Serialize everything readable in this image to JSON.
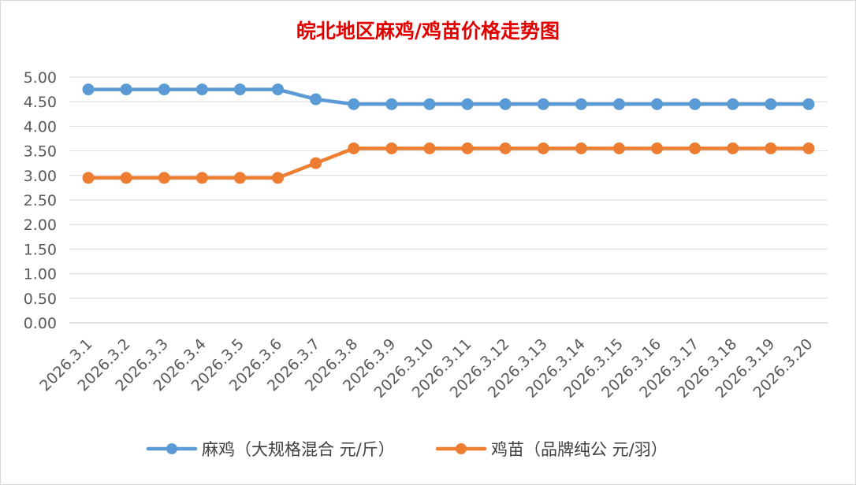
{
  "chart_data": {
    "type": "line",
    "title": "皖北地区麻鸡/鸡苗价格走势图",
    "xlabel": "",
    "ylabel": "",
    "ylim": [
      0,
      5
    ],
    "yticks": [
      "0.00",
      "0.50",
      "1.00",
      "1.50",
      "2.00",
      "2.50",
      "3.00",
      "3.50",
      "4.00",
      "4.50",
      "5.00"
    ],
    "categories": [
      "2026.3.1",
      "2026.3.2",
      "2026.3.3",
      "2026.3.4",
      "2026.3.5",
      "2026.3.6",
      "2026.3.7",
      "2026.3.8",
      "2026.3.9",
      "2026.3.10",
      "2026.3.11",
      "2026.3.12",
      "2026.3.13",
      "2026.3.14",
      "2026.3.15",
      "2026.3.16",
      "2026.3.17",
      "2026.3.18",
      "2026.3.19",
      "2026.3.20"
    ],
    "series": [
      {
        "name": "麻鸡（大规格混合 元/斤）",
        "color": "#5b9bd5",
        "values": [
          4.75,
          4.75,
          4.75,
          4.75,
          4.75,
          4.75,
          4.55,
          4.45,
          4.45,
          4.45,
          4.45,
          4.45,
          4.45,
          4.45,
          4.45,
          4.45,
          4.45,
          4.45,
          4.45,
          4.45
        ]
      },
      {
        "name": "鸡苗（品牌纯公 元/羽）",
        "color": "#ed7d31",
        "values": [
          2.95,
          2.95,
          2.95,
          2.95,
          2.95,
          2.95,
          3.25,
          3.55,
          3.55,
          3.55,
          3.55,
          3.55,
          3.55,
          3.55,
          3.55,
          3.55,
          3.55,
          3.55,
          3.55,
          3.55
        ]
      }
    ],
    "grid": true,
    "legend": "bottom"
  }
}
